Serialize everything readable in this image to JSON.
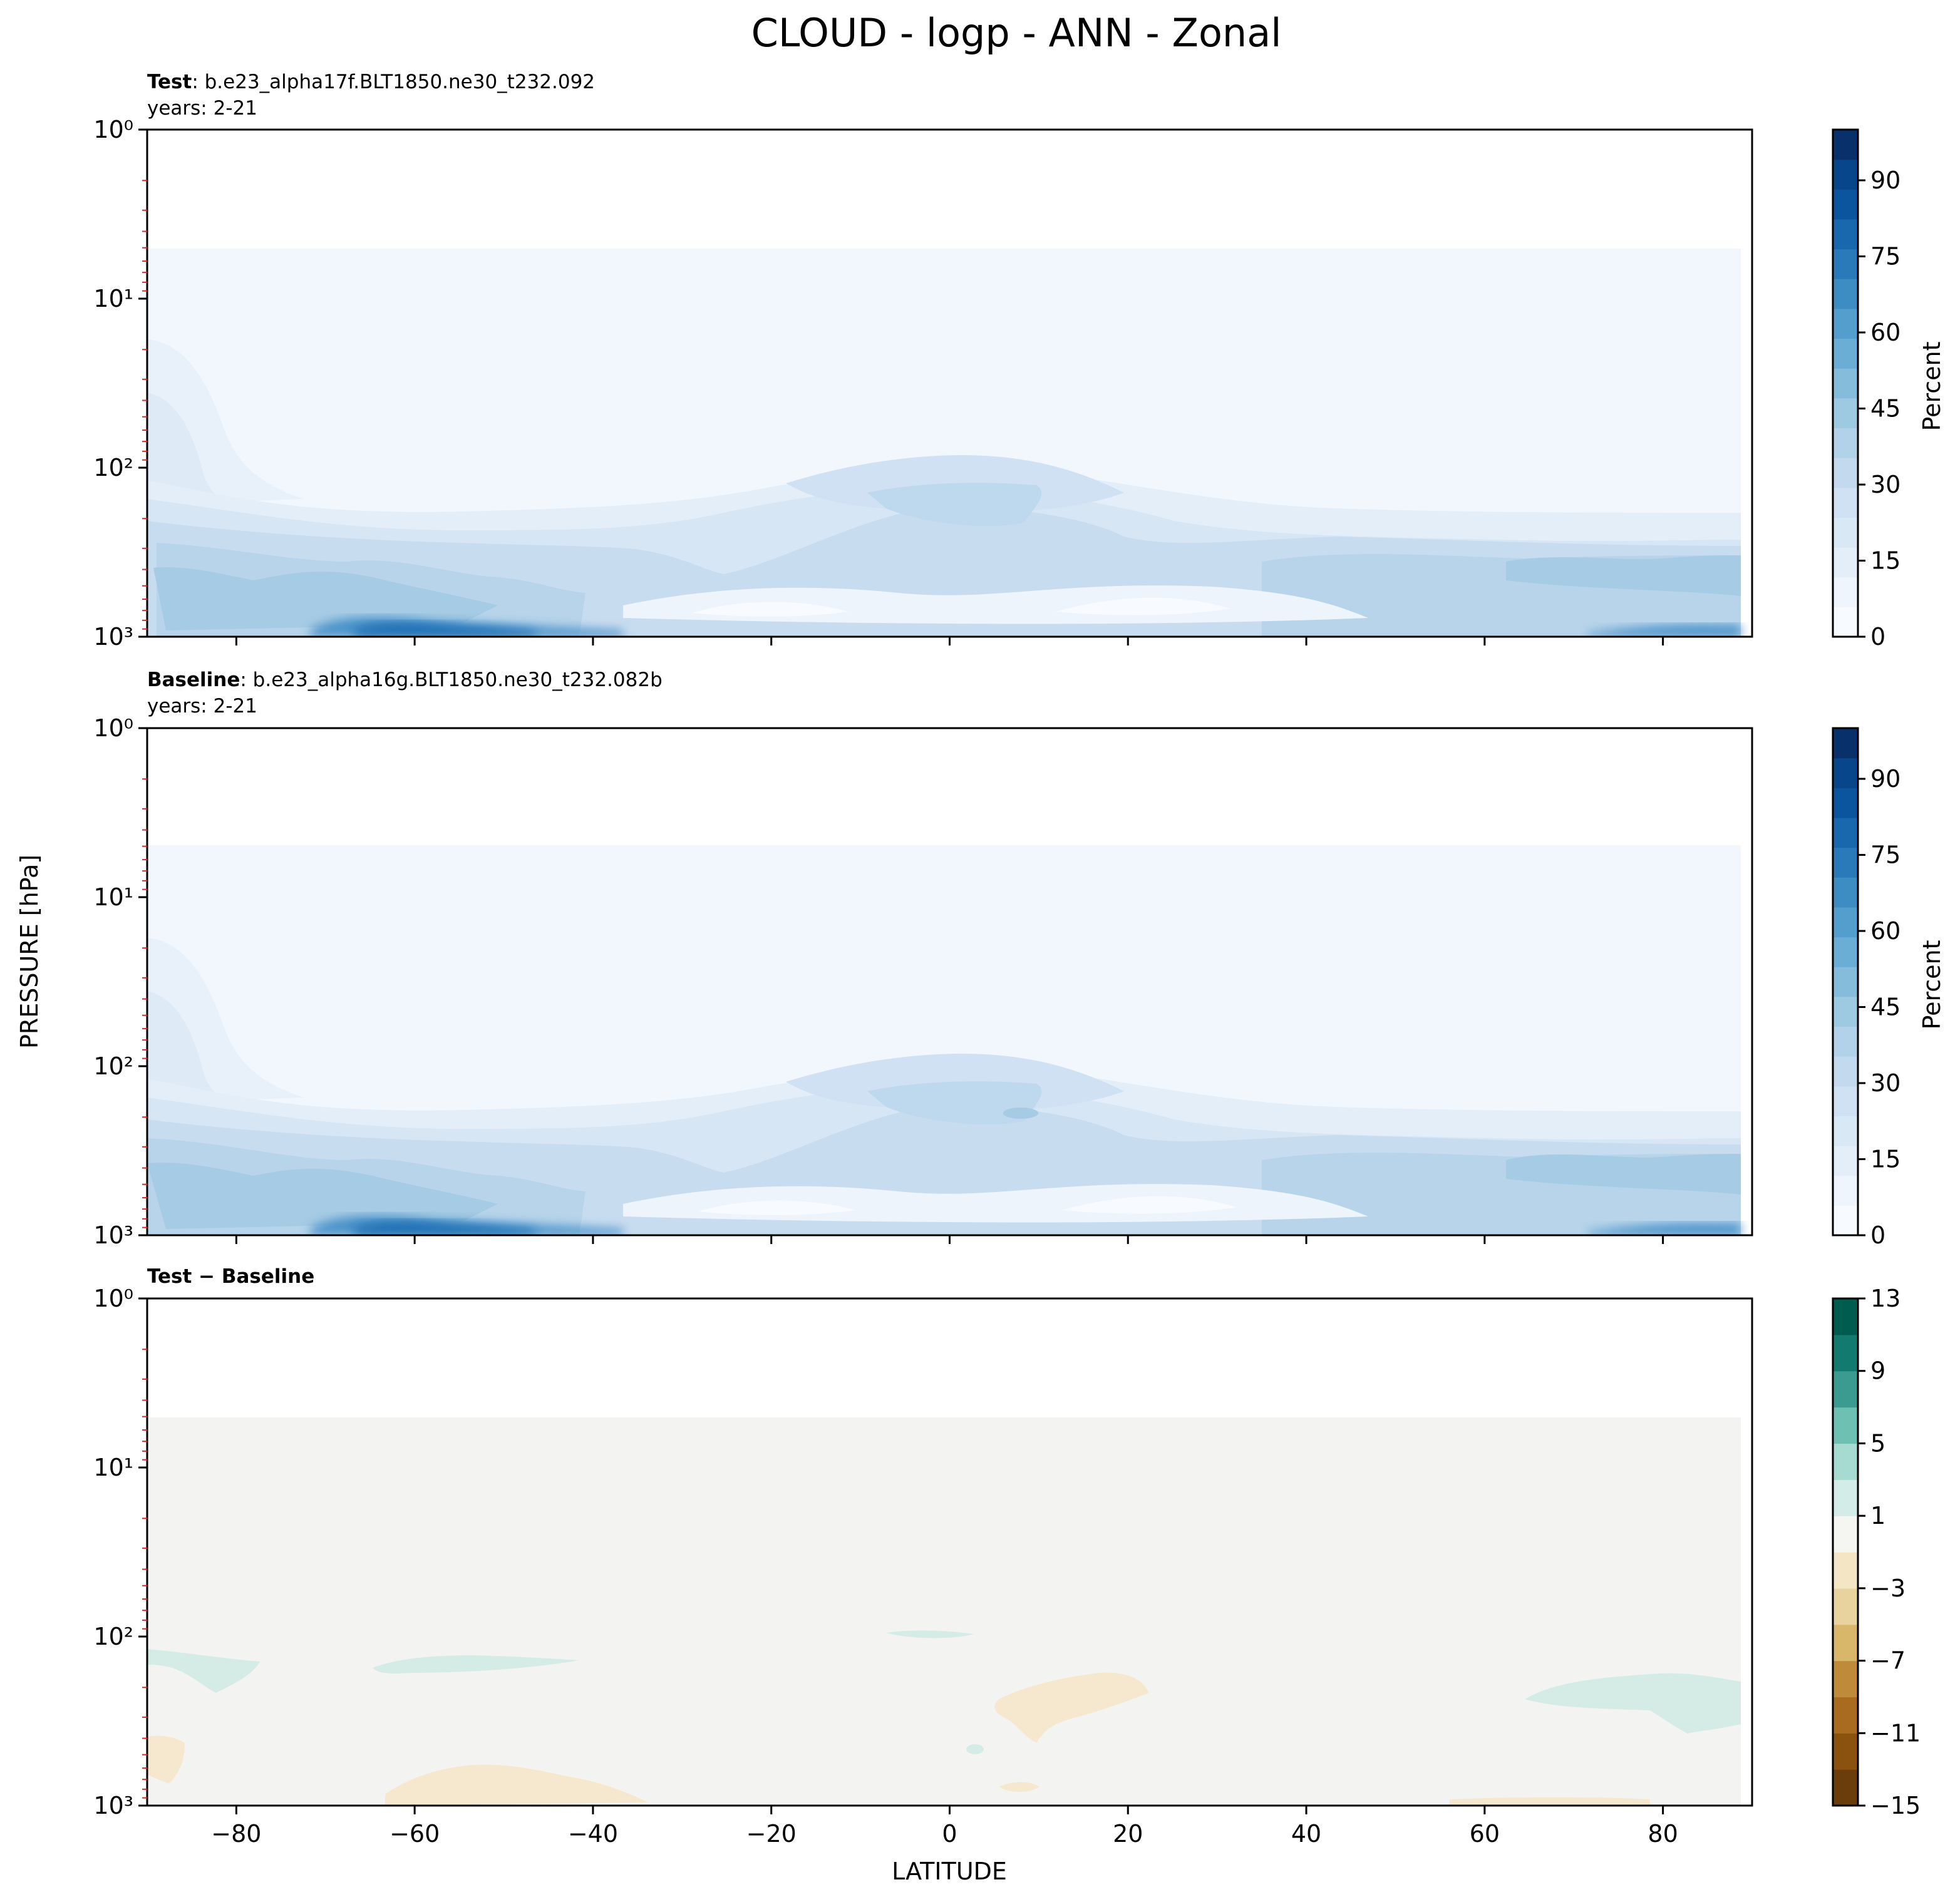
{
  "figure_title": "CLOUD - logp - ANN - Zonal",
  "shared_axes": {
    "xlabel": "LATITUDE",
    "ylabel": "PRESSURE [hPa]"
  },
  "panels": [
    {
      "id": "test",
      "title_bold": "Test",
      "title_rest": ": b.e23_alpha17f.BLT1850.ne30_t232.092",
      "subtitle": "years: 2-21"
    },
    {
      "id": "baseline",
      "title_bold": "Baseline",
      "title_rest": ": b.e23_alpha16g.BLT1850.ne30_t232.082b",
      "subtitle": "years: 2-21"
    },
    {
      "id": "diff",
      "title_bold": "Test − Baseline",
      "title_rest": "",
      "subtitle": ""
    }
  ],
  "chart_data": [
    {
      "type": "heatmap",
      "panel": "Test",
      "title": "Test : b.e23_alpha17f.BLT1850.ne30_t232.092",
      "subtitle": "years: 2-21",
      "xlabel": "LATITUDE",
      "ylabel": "PRESSURE [hPa]",
      "xlim": [
        -90,
        90
      ],
      "ylim": [
        1000,
        1
      ],
      "yscale": "log",
      "x_ticks": [
        -80,
        -60,
        -40,
        -20,
        0,
        20,
        40,
        60,
        80
      ],
      "y_ticks": [
        "10^0",
        "10^1",
        "10^2",
        "10^3"
      ],
      "colorbar": {
        "label": "Percent",
        "ticks": [
          0,
          15,
          30,
          45,
          60,
          75,
          90
        ],
        "range": [
          0,
          100
        ],
        "colormap": "Blues"
      },
      "features": [
        {
          "region": "Southern high latitudes, near surface",
          "approx_percent": 75
        },
        {
          "region": "Tropical upper troposphere (~150-250 hPa)",
          "approx_percent": 30
        },
        {
          "region": "Arctic low levels",
          "approx_percent": 45
        }
      ]
    },
    {
      "type": "heatmap",
      "panel": "Baseline",
      "title": "Baseline : b.e23_alpha16g.BLT1850.ne30_t232.082b",
      "subtitle": "years: 2-21",
      "xlabel": "LATITUDE",
      "ylabel": "PRESSURE [hPa]",
      "xlim": [
        -90,
        90
      ],
      "ylim": [
        1000,
        1
      ],
      "yscale": "log",
      "x_ticks": [
        -80,
        -60,
        -40,
        -20,
        0,
        20,
        40,
        60,
        80
      ],
      "y_ticks": [
        "10^0",
        "10^1",
        "10^2",
        "10^3"
      ],
      "colorbar": {
        "label": "Percent",
        "ticks": [
          0,
          15,
          30,
          45,
          60,
          75,
          90
        ],
        "range": [
          0,
          100
        ],
        "colormap": "Blues"
      },
      "features": [
        {
          "region": "Southern high latitudes, near surface",
          "approx_percent": 75
        },
        {
          "region": "Tropical upper troposphere (~150-250 hPa)",
          "approx_percent": 32
        },
        {
          "region": "Arctic low levels",
          "approx_percent": 45
        }
      ]
    },
    {
      "type": "heatmap",
      "panel": "Test - Baseline",
      "title": "Test − Baseline",
      "xlabel": "LATITUDE",
      "ylabel": "PRESSURE [hPa]",
      "xlim": [
        -90,
        90
      ],
      "ylim": [
        1000,
        1
      ],
      "yscale": "log",
      "x_ticks": [
        -80,
        -60,
        -40,
        -20,
        0,
        20,
        40,
        60,
        80
      ],
      "y_ticks": [
        "10^0",
        "10^1",
        "10^2",
        "10^3"
      ],
      "colorbar": {
        "ticks": [
          -15,
          -11,
          -7,
          -3,
          1,
          5,
          9,
          13
        ],
        "range": [
          -15,
          13
        ],
        "colormap": "BrBG"
      },
      "features": [
        {
          "region": "Near-zero everywhere",
          "approx_value": 0
        },
        {
          "region": "Southern mid-latitudes ~250 hPa",
          "approx_value": 2
        },
        {
          "region": "Tropics 10-20N ~200-400 hPa",
          "approx_value": -2
        },
        {
          "region": "Arctic ~250-300 hPa",
          "approx_value": 2
        }
      ]
    }
  ]
}
